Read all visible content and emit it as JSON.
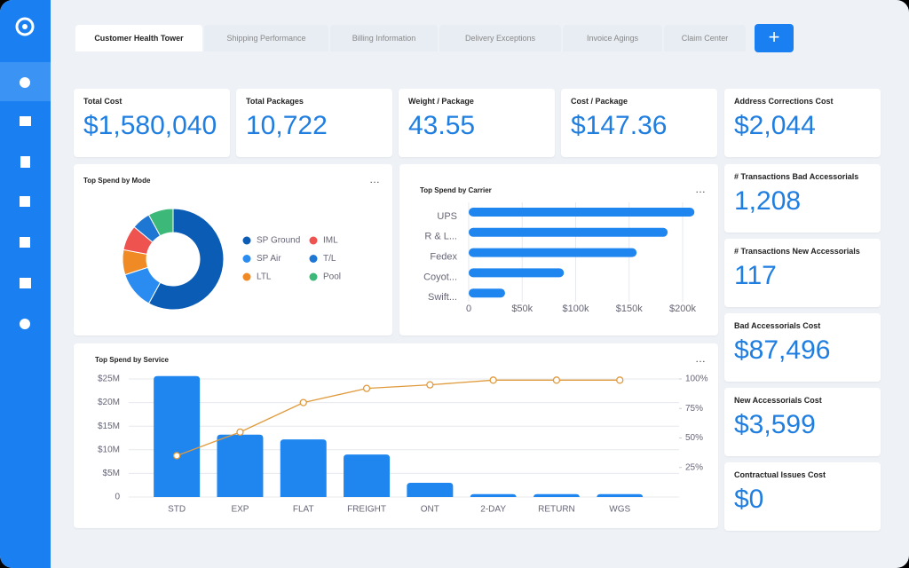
{
  "tabs": [
    "Customer Health Tower",
    "Shipping Performance",
    "Billing Information",
    "Delivery Exceptions",
    "Invoice Agings",
    "Claim Center"
  ],
  "kpis": [
    {
      "label": "Total Cost",
      "value": "$1,580,040"
    },
    {
      "label": "Total Packages",
      "value": "10,722"
    },
    {
      "label": "Weight / Package",
      "value": "43.55"
    },
    {
      "label": "Cost / Package",
      "value": "$147.36"
    },
    {
      "label": "Address Corrections Cost",
      "value": "$2,044"
    },
    {
      "label": "# Transactions Bad Accessorials",
      "value": "1,208"
    },
    {
      "label": "# Transactions New Accessorials",
      "value": "117"
    },
    {
      "label": "Bad Accessorials Cost",
      "value": "$87,496"
    },
    {
      "label": "New Accessorials Cost",
      "value": "$3,599"
    },
    {
      "label": "Contractual Issues Cost",
      "value": "$0"
    }
  ],
  "chart_data": [
    {
      "type": "donut",
      "title": "Top Spend by Mode",
      "categories": [
        "SP Ground",
        "SP Air",
        "LTL",
        "IML",
        "T/L",
        "Pool"
      ],
      "values": [
        58,
        12,
        8,
        8,
        6,
        8
      ],
      "colors": [
        "#0b5cb5",
        "#2a8cf0",
        "#f08a24",
        "#ef5350",
        "#1f77d4",
        "#3cb878"
      ]
    },
    {
      "type": "hbar",
      "title": "Top Spend by Carrier",
      "categories": [
        "UPS",
        "R & L...",
        "Fedex",
        "Coyot...",
        "Swift..."
      ],
      "values": [
        211000,
        186000,
        157000,
        89000,
        34000
      ],
      "color": "#1f86f0",
      "xlim": [
        0,
        215000
      ],
      "xticks": [
        0,
        {
          "value": 50000,
          "label": "$50k"
        },
        {
          "value": 100000,
          "label": "$100k"
        },
        {
          "value": 150000,
          "label": "$150k"
        },
        {
          "value": 200000,
          "label": "$200k"
        }
      ],
      "grid": true
    },
    {
      "type": "combo",
      "title": "Top Spend by Service",
      "categories": [
        "STD",
        "EXP",
        "FLAT",
        "FREIGHT",
        "ONT",
        "2-DAY",
        "RETURN",
        "WGS"
      ],
      "series": [
        {
          "type": "bar",
          "color": "#1f86f0",
          "values": [
            25600000,
            13200000,
            12200000,
            9000000,
            3000000,
            600000,
            600000,
            600000
          ]
        },
        {
          "type": "line",
          "axis": "y2",
          "color": "#e09a3c",
          "values": [
            35,
            55,
            80,
            92,
            95,
            99,
            99,
            99
          ]
        }
      ],
      "ylim": [
        0,
        26000000
      ],
      "yticks": [
        0,
        {
          "value": 5000000,
          "label": "$5M"
        },
        {
          "value": 10000000,
          "label": "$10M"
        },
        {
          "value": 15000000,
          "label": "$15M"
        },
        {
          "value": 20000000,
          "label": "$20M"
        },
        {
          "value": 25000000,
          "label": "$25M"
        }
      ],
      "y2lim": [
        0,
        104
      ],
      "y2ticks": [
        {
          "value": 25,
          "label": "25%"
        },
        {
          "value": 50,
          "label": "50%"
        },
        {
          "value": 75,
          "label": "75%"
        },
        {
          "value": 100,
          "label": "100%"
        }
      ],
      "grid": true
    }
  ]
}
